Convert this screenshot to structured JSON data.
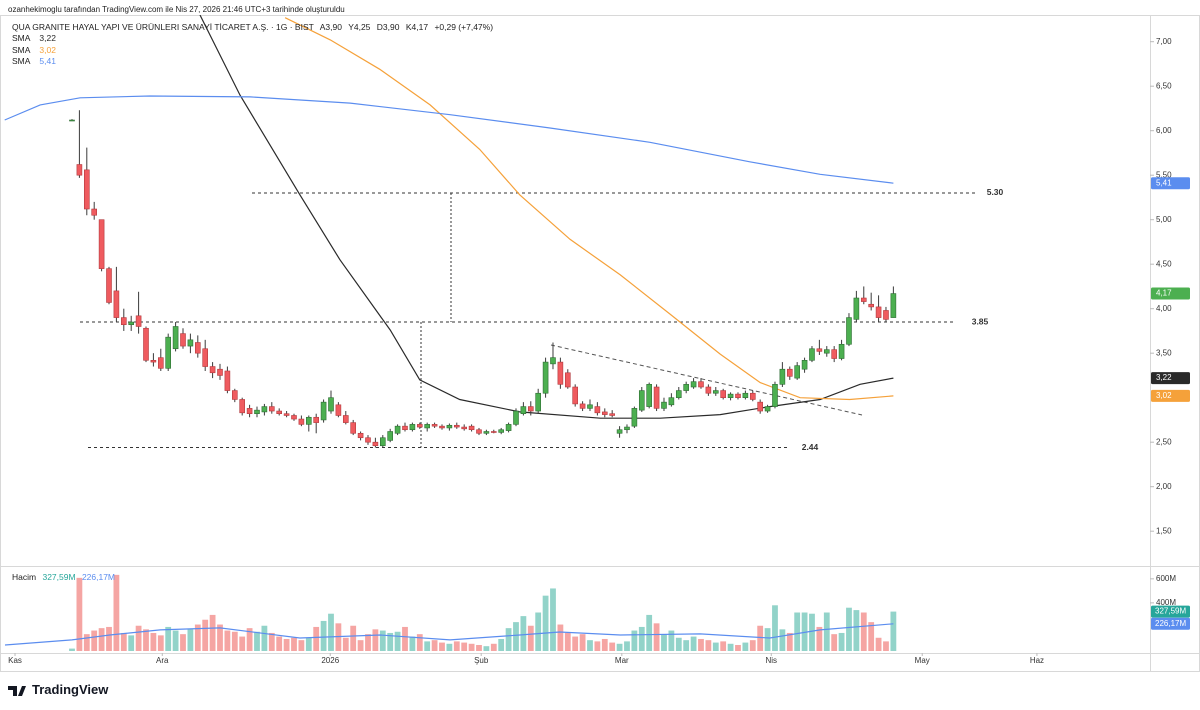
{
  "header": {
    "credit": "ozanhekimoglu tarafından TradingView.com ile Nis 27, 2026 21:46 UTC+3 tarihinde oluşturuldu",
    "symbol": "QUA GRANITE HAYAL YAPI VE ÜRÜNLERI SANAYİ TİCARET A.Ş. · 1G · BIST",
    "ohlc": [
      "A3,90",
      "Y4,25",
      "D3,90",
      "K4,17",
      "+0,29 (+7,47%)"
    ]
  },
  "footer": {
    "brand": "TradingView"
  },
  "chart_data": [
    {
      "type": "candlestick",
      "up_color": "#4caf50",
      "down_color": "#ef5b5f",
      "up_border": "#2e6b33",
      "down_border": "#b2393d",
      "wick_color": "#3a3a3a",
      "ylim": [
        1.12,
        7.3
      ],
      "yticks": [
        {
          "value": 7,
          "label": "7,00"
        },
        {
          "value": 6.5,
          "label": "6,50"
        },
        {
          "value": 6,
          "label": "6,00"
        },
        {
          "value": 5.5,
          "label": "5,50"
        },
        {
          "value": 5,
          "label": "5,00"
        },
        {
          "value": 4.5,
          "label": "4,50"
        },
        {
          "value": 4,
          "label": "4,00"
        },
        {
          "value": 3.5,
          "label": "3,50"
        },
        {
          "value": 2.5,
          "label": "2,50"
        },
        {
          "value": 2,
          "label": "2,00"
        },
        {
          "value": 1.5,
          "label": "1,50"
        }
      ],
      "xlim": [
        -9.73,
        145.68
      ],
      "last_label": "4,17",
      "ohlc": [
        [
          6.12,
          6.13,
          6.11,
          6.12
        ],
        [
          5.62,
          6.23,
          5.47,
          5.5
        ],
        [
          5.56,
          5.81,
          5.05,
          5.12
        ],
        [
          5.12,
          5.2,
          5.0,
          5.05
        ],
        [
          5.0,
          5.0,
          4.42,
          4.45
        ],
        [
          4.45,
          4.47,
          4.05,
          4.07
        ],
        [
          4.2,
          4.47,
          3.85,
          3.9
        ],
        [
          3.9,
          4.0,
          3.75,
          3.82
        ],
        [
          3.82,
          3.92,
          3.75,
          3.85
        ],
        [
          3.92,
          4.19,
          3.72,
          3.8
        ],
        [
          3.78,
          3.8,
          3.4,
          3.42
        ],
        [
          3.42,
          3.5,
          3.35,
          3.4
        ],
        [
          3.45,
          3.55,
          3.3,
          3.33
        ],
        [
          3.33,
          3.72,
          3.3,
          3.68
        ],
        [
          3.55,
          3.85,
          3.52,
          3.8
        ],
        [
          3.72,
          3.78,
          3.55,
          3.58
        ],
        [
          3.58,
          3.72,
          3.5,
          3.65
        ],
        [
          3.62,
          3.7,
          3.45,
          3.5
        ],
        [
          3.55,
          3.65,
          3.3,
          3.35
        ],
        [
          3.35,
          3.4,
          3.22,
          3.28
        ],
        [
          3.32,
          3.38,
          3.2,
          3.25
        ],
        [
          3.3,
          3.35,
          3.05,
          3.08
        ],
        [
          3.08,
          3.1,
          2.95,
          2.98
        ],
        [
          2.98,
          3.0,
          2.8,
          2.83
        ],
        [
          2.88,
          2.92,
          2.78,
          2.82
        ],
        [
          2.82,
          2.9,
          2.78,
          2.86
        ],
        [
          2.84,
          2.93,
          2.8,
          2.9
        ],
        [
          2.9,
          2.95,
          2.82,
          2.85
        ],
        [
          2.85,
          2.88,
          2.8,
          2.82
        ],
        [
          2.82,
          2.85,
          2.78,
          2.8
        ],
        [
          2.8,
          2.82,
          2.74,
          2.76
        ],
        [
          2.76,
          2.8,
          2.68,
          2.7
        ],
        [
          2.7,
          2.8,
          2.62,
          2.78
        ],
        [
          2.78,
          2.82,
          2.6,
          2.72
        ],
        [
          2.75,
          2.98,
          2.72,
          2.95
        ],
        [
          2.85,
          3.08,
          2.82,
          3.0
        ],
        [
          2.92,
          2.95,
          2.78,
          2.8
        ],
        [
          2.8,
          2.85,
          2.7,
          2.72
        ],
        [
          2.72,
          2.75,
          2.58,
          2.6
        ],
        [
          2.6,
          2.62,
          2.52,
          2.55
        ],
        [
          2.55,
          2.58,
          2.47,
          2.5
        ],
        [
          2.5,
          2.55,
          2.44,
          2.46
        ],
        [
          2.46,
          2.58,
          2.44,
          2.55
        ],
        [
          2.52,
          2.65,
          2.5,
          2.62
        ],
        [
          2.6,
          2.7,
          2.58,
          2.68
        ],
        [
          2.68,
          2.72,
          2.62,
          2.64
        ],
        [
          2.64,
          2.72,
          2.62,
          2.7
        ],
        [
          2.7,
          2.72,
          2.65,
          2.67
        ],
        [
          2.66,
          2.72,
          2.62,
          2.7
        ],
        [
          2.7,
          2.72,
          2.66,
          2.68
        ],
        [
          2.68,
          2.7,
          2.64,
          2.66
        ],
        [
          2.66,
          2.71,
          2.63,
          2.69
        ],
        [
          2.69,
          2.72,
          2.65,
          2.67
        ],
        [
          2.67,
          2.7,
          2.63,
          2.65
        ],
        [
          2.68,
          2.7,
          2.62,
          2.64
        ],
        [
          2.64,
          2.66,
          2.58,
          2.6
        ],
        [
          2.6,
          2.64,
          2.58,
          2.62
        ],
        [
          2.62,
          2.64,
          2.6,
          2.61
        ],
        [
          2.61,
          2.66,
          2.59,
          2.64
        ],
        [
          2.63,
          2.72,
          2.61,
          2.7
        ],
        [
          2.7,
          2.88,
          2.68,
          2.85
        ],
        [
          2.82,
          2.95,
          2.8,
          2.9
        ],
        [
          2.9,
          2.96,
          2.8,
          2.85
        ],
        [
          2.85,
          3.1,
          2.82,
          3.05
        ],
        [
          3.05,
          3.45,
          3.0,
          3.4
        ],
        [
          3.38,
          3.62,
          3.32,
          3.45
        ],
        [
          3.4,
          3.45,
          3.1,
          3.15
        ],
        [
          3.28,
          3.32,
          3.1,
          3.12
        ],
        [
          3.12,
          3.15,
          2.9,
          2.93
        ],
        [
          2.93,
          2.96,
          2.85,
          2.88
        ],
        [
          2.88,
          2.98,
          2.85,
          2.92
        ],
        [
          2.9,
          2.95,
          2.8,
          2.83
        ],
        [
          2.84,
          2.88,
          2.78,
          2.81
        ],
        [
          2.82,
          2.86,
          2.78,
          2.8
        ],
        [
          2.6,
          2.68,
          2.55,
          2.64
        ],
        [
          2.64,
          2.7,
          2.6,
          2.67
        ],
        [
          2.68,
          2.9,
          2.66,
          2.88
        ],
        [
          2.86,
          3.12,
          2.84,
          3.08
        ],
        [
          2.9,
          3.17,
          2.88,
          3.15
        ],
        [
          3.12,
          3.15,
          2.85,
          2.88
        ],
        [
          2.88,
          3.0,
          2.85,
          2.95
        ],
        [
          2.92,
          3.05,
          2.9,
          3.0
        ],
        [
          3.0,
          3.12,
          2.98,
          3.08
        ],
        [
          3.08,
          3.18,
          3.05,
          3.15
        ],
        [
          3.12,
          3.22,
          3.1,
          3.18
        ],
        [
          3.18,
          3.22,
          3.1,
          3.12
        ],
        [
          3.12,
          3.15,
          3.02,
          3.05
        ],
        [
          3.05,
          3.12,
          3.02,
          3.08
        ],
        [
          3.08,
          3.1,
          2.98,
          3.0
        ],
        [
          3.0,
          3.06,
          2.97,
          3.04
        ],
        [
          3.04,
          3.06,
          2.98,
          3.0
        ],
        [
          3.0,
          3.08,
          2.98,
          3.05
        ],
        [
          3.05,
          3.08,
          2.96,
          2.98
        ],
        [
          2.95,
          2.98,
          2.82,
          2.85
        ],
        [
          2.85,
          2.92,
          2.83,
          2.9
        ],
        [
          2.9,
          3.18,
          2.88,
          3.15
        ],
        [
          3.15,
          3.4,
          3.12,
          3.32
        ],
        [
          3.32,
          3.35,
          3.2,
          3.24
        ],
        [
          3.22,
          3.4,
          3.2,
          3.36
        ],
        [
          3.32,
          3.45,
          3.28,
          3.42
        ],
        [
          3.42,
          3.58,
          3.4,
          3.55
        ],
        [
          3.55,
          3.65,
          3.48,
          3.52
        ],
        [
          3.5,
          3.58,
          3.46,
          3.54
        ],
        [
          3.54,
          3.58,
          3.4,
          3.44
        ],
        [
          3.44,
          3.65,
          3.42,
          3.6
        ],
        [
          3.6,
          3.95,
          3.58,
          3.9
        ],
        [
          3.88,
          4.2,
          3.85,
          4.12
        ],
        [
          4.12,
          4.25,
          4.05,
          4.08
        ],
        [
          4.05,
          4.18,
          3.98,
          4.02
        ],
        [
          4.02,
          4.15,
          3.85,
          3.9
        ],
        [
          3.98,
          4.02,
          3.85,
          3.88
        ],
        [
          3.9,
          4.25,
          3.9,
          4.17
        ]
      ],
      "series": [
        {
          "name": "SMA",
          "color": "#2a2a2a",
          "last_label": "3,22",
          "x": [
            17.3,
            22.7,
            30.8,
            36.2,
            43.0,
            47.0,
            52.4,
            60.5,
            71.4,
            79.5,
            87.6,
            94.3,
            101.1,
            106.5,
            111
          ],
          "values": [
            7.3,
            6.4,
            5.28,
            4.55,
            3.76,
            3.2,
            2.98,
            2.84,
            2.77,
            2.77,
            2.81,
            2.9,
            2.98,
            3.15,
            3.22
          ]
        },
        {
          "name": "SMA",
          "color": "#f5a13a",
          "last_label": "3,02",
          "x": [
            28.8,
            34.9,
            41.6,
            48.4,
            55.1,
            60.5,
            67.3,
            74.1,
            80.8,
            87.6,
            93.0,
            98.4,
            105.1,
            111
          ],
          "values": [
            7.27,
            7.02,
            6.69,
            6.29,
            5.79,
            5.28,
            4.78,
            4.38,
            3.94,
            3.49,
            3.17,
            3.0,
            2.98,
            3.02
          ]
        },
        {
          "name": "SMA",
          "color": "#5b8def",
          "last_label": "5,41",
          "x": [
            -9.1,
            -4.3,
            1.1,
            10.5,
            24.1,
            37.6,
            51.1,
            64.6,
            78.1,
            91.6,
            101.1,
            111
          ],
          "values": [
            6.12,
            6.29,
            6.37,
            6.39,
            6.38,
            6.31,
            6.18,
            6.03,
            5.87,
            5.65,
            5.51,
            5.41
          ]
        }
      ],
      "annotations": [
        {
          "value": 5.3,
          "label": "5.30"
        },
        {
          "value": 3.85,
          "label": "3.85"
        },
        {
          "value": 2.44,
          "label": "2.44"
        }
      ]
    },
    {
      "type": "bar",
      "title": "Hacim",
      "up_color": "#92d3c9",
      "down_color": "#f5a5a3",
      "ylim": [
        0,
        690000000
      ],
      "yticks": [
        {
          "value": 600000000,
          "label": "600M"
        },
        {
          "value": 400000000,
          "label": "400M"
        }
      ],
      "xlim": [
        -9.73,
        145.68
      ],
      "xticks": [
        {
          "value": -7.7,
          "label": "Kas"
        },
        {
          "value": 12.2,
          "label": "Ara"
        },
        {
          "value": 34.9,
          "label": "2026"
        },
        {
          "value": 55.3,
          "label": "Şub"
        },
        {
          "value": 74.3,
          "label": "Mar"
        },
        {
          "value": 94.5,
          "label": "Nis"
        },
        {
          "value": 114.9,
          "label": "May"
        },
        {
          "value": 130.4,
          "label": "Haz"
        }
      ],
      "last_label": "327,59M",
      "values": [
        20000000,
        608000000,
        140000000,
        170000000,
        190000000,
        200000000,
        633000000,
        150000000,
        130000000,
        210000000,
        180000000,
        150000000,
        130000000,
        200000000,
        170000000,
        140000000,
        180000000,
        220000000,
        260000000,
        300000000,
        220000000,
        170000000,
        160000000,
        120000000,
        190000000,
        160000000,
        210000000,
        150000000,
        120000000,
        100000000,
        110000000,
        90000000,
        110000000,
        200000000,
        250000000,
        310000000,
        230000000,
        110000000,
        210000000,
        90000000,
        140000000,
        180000000,
        170000000,
        150000000,
        160000000,
        200000000,
        120000000,
        140000000,
        80000000,
        90000000,
        70000000,
        60000000,
        80000000,
        70000000,
        60000000,
        50000000,
        40000000,
        60000000,
        100000000,
        190000000,
        240000000,
        290000000,
        210000000,
        320000000,
        460000000,
        520000000,
        220000000,
        150000000,
        120000000,
        140000000,
        90000000,
        80000000,
        100000000,
        70000000,
        60000000,
        80000000,
        170000000,
        200000000,
        300000000,
        230000000,
        140000000,
        170000000,
        110000000,
        90000000,
        120000000,
        100000000,
        90000000,
        70000000,
        80000000,
        60000000,
        50000000,
        70000000,
        90000000,
        210000000,
        190000000,
        380000000,
        180000000,
        150000000,
        320000000,
        320000000,
        310000000,
        200000000,
        320000000,
        140000000,
        150000000,
        360000000,
        340000000,
        320000000,
        240000000,
        110000000,
        80000000,
        327590000
      ],
      "series": [
        {
          "color": "#5b8def",
          "last_label": "226,17M",
          "x": [
            -9.05,
            0,
            5.1,
            11.9,
            20,
            30.8,
            41.6,
            51.1,
            60.5,
            65.9,
            74.1,
            84.9,
            94.3,
            101.1,
            111
          ],
          "values": [
            50000000,
            92000000,
            133000000,
            175000000,
            192000000,
            108000000,
            133000000,
            92000000,
            133000000,
            158000000,
            133000000,
            142000000,
            108000000,
            175000000,
            226170000
          ]
        }
      ]
    }
  ]
}
